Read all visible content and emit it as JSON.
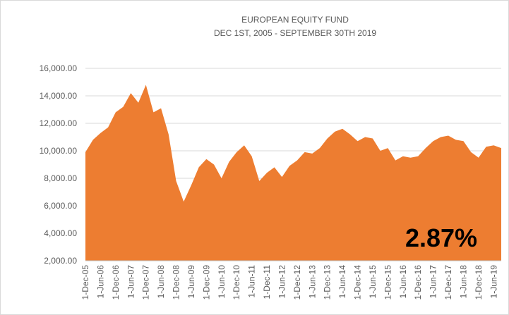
{
  "chart_data": {
    "type": "area",
    "title": "EUROPEAN EQUITY FUND",
    "subtitle": "DEC 1ST, 2005 -  SEPTEMBER 30TH 2019",
    "annotation": "2.87%",
    "color": "#ed7d31",
    "categories": [
      "1-Dec-05",
      null,
      "1-Jun-06",
      null,
      "1-Dec-06",
      null,
      "1-Jun-07",
      null,
      "1-Dec-07",
      null,
      "1-Jun-08",
      null,
      "1-Dec-08",
      null,
      "1-Jun-09",
      null,
      "1-Dec-09",
      null,
      "1-Jun-10",
      null,
      "1-Dec-10",
      null,
      "1-Jun-11",
      null,
      "1-Dec-11",
      null,
      "1-Jun-12",
      null,
      "1-Dec-12",
      null,
      "1-Jun-13",
      null,
      "1-Dec-13",
      null,
      "1-Jun-14",
      null,
      "1-Dec-14",
      null,
      "1-Jun-15",
      null,
      "1-Dec-15",
      null,
      "1-Jun-16",
      null,
      "1-Dec-16",
      null,
      "1-Jun-17",
      null,
      "1-Dec-17",
      null,
      "1-Jun-18",
      null,
      "1-Dec-18",
      null,
      "1-Jun-19",
      null
    ],
    "values": [
      9900,
      10800,
      11300,
      11700,
      12800,
      13200,
      14200,
      13500,
      14800,
      12800,
      13100,
      11200,
      7800,
      6300,
      7500,
      8800,
      9400,
      9000,
      8000,
      9200,
      9900,
      10400,
      9600,
      7800,
      8400,
      8800,
      8100,
      8900,
      9300,
      9900,
      9800,
      10200,
      10900,
      11400,
      11600,
      11200,
      10700,
      11000,
      10900,
      10000,
      10200,
      9300,
      9600,
      9500,
      9600,
      10200,
      10700,
      11000,
      11100,
      10800,
      10700,
      9900,
      9500,
      10300,
      10400,
      10200
    ],
    "ylim": [
      2000,
      16000
    ],
    "yticks": [
      {
        "value": 2000,
        "label": "2,000.00"
      },
      {
        "value": 4000,
        "label": "4,000.00"
      },
      {
        "value": 6000,
        "label": "6,000.00"
      },
      {
        "value": 8000,
        "label": "8,000.00"
      },
      {
        "value": 10000,
        "label": "10,000.00"
      },
      {
        "value": 12000,
        "label": "12,000.00"
      },
      {
        "value": 14000,
        "label": "14,000.00"
      },
      {
        "value": 16000,
        "label": "16,000.00"
      }
    ],
    "grid": true
  }
}
